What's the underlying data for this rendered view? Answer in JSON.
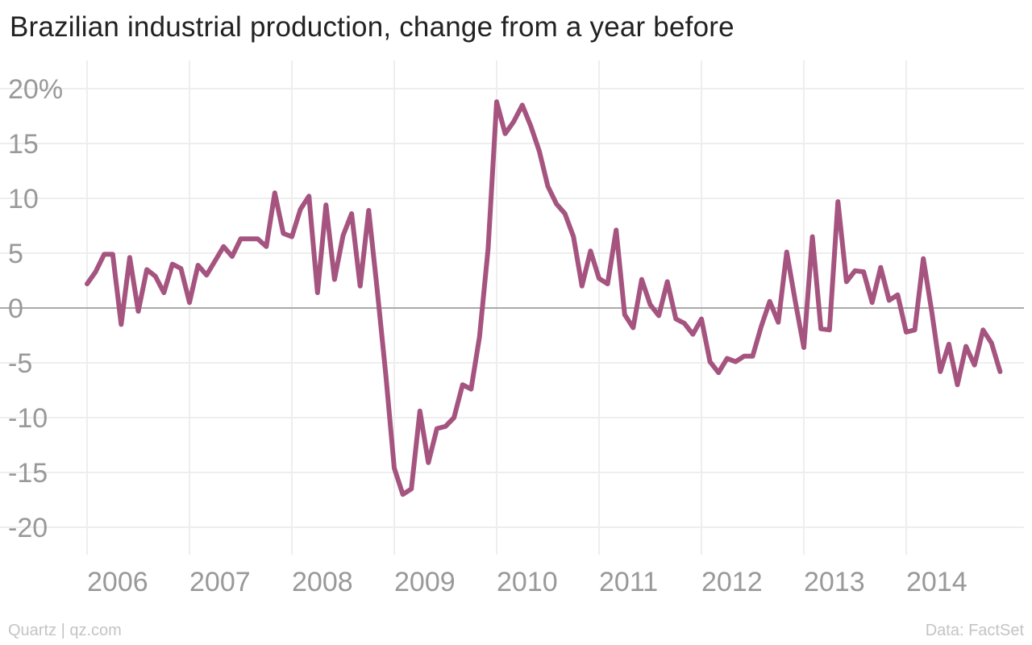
{
  "chart_data": {
    "type": "line",
    "title": "Brazilian industrial production, change from a year before",
    "xlabel": "",
    "ylabel": "",
    "y_unit": "%",
    "ylim": [
      -22,
      22
    ],
    "xlim": [
      "2006-01",
      "2014-12"
    ],
    "grid": true,
    "zero_line": true,
    "legend": "none",
    "y_ticks": [
      20,
      15,
      10,
      5,
      0,
      -5,
      -10,
      -15,
      -20
    ],
    "y_tick_labels": [
      "20%",
      "15",
      "10",
      "5",
      "0",
      "-5",
      "-10",
      "-15",
      "-20"
    ],
    "x_ticks": [
      "2006",
      "2007",
      "2008",
      "2009",
      "2010",
      "2011",
      "2012",
      "2013",
      "2014"
    ],
    "series": [
      {
        "color": "#a5547f",
        "points": [
          [
            "2006-01",
            2.2
          ],
          [
            "2006-02",
            3.3
          ],
          [
            "2006-03",
            4.9
          ],
          [
            "2006-04",
            4.9
          ],
          [
            "2006-05",
            -1.5
          ],
          [
            "2006-06",
            4.6
          ],
          [
            "2006-07",
            -0.3
          ],
          [
            "2006-08",
            3.5
          ],
          [
            "2006-09",
            2.9
          ],
          [
            "2006-10",
            1.4
          ],
          [
            "2006-11",
            4.0
          ],
          [
            "2006-12",
            3.6
          ],
          [
            "2007-01",
            0.5
          ],
          [
            "2007-02",
            3.9
          ],
          [
            "2007-03",
            3.0
          ],
          [
            "2007-04",
            4.3
          ],
          [
            "2007-05",
            5.6
          ],
          [
            "2007-06",
            4.7
          ],
          [
            "2007-07",
            6.3
          ],
          [
            "2007-08",
            6.3
          ],
          [
            "2007-09",
            6.3
          ],
          [
            "2007-10",
            5.6
          ],
          [
            "2007-11",
            10.5
          ],
          [
            "2007-12",
            6.8
          ],
          [
            "2008-01",
            6.5
          ],
          [
            "2008-02",
            9.0
          ],
          [
            "2008-03",
            10.2
          ],
          [
            "2008-04",
            1.4
          ],
          [
            "2008-05",
            9.4
          ],
          [
            "2008-06",
            2.6
          ],
          [
            "2008-07",
            6.6
          ],
          [
            "2008-08",
            8.6
          ],
          [
            "2008-09",
            2.0
          ],
          [
            "2008-10",
            8.9
          ],
          [
            "2008-11",
            1.7
          ],
          [
            "2008-12",
            -6.0
          ],
          [
            "2009-01",
            -14.6
          ],
          [
            "2009-02",
            -17.0
          ],
          [
            "2009-03",
            -16.5
          ],
          [
            "2009-04",
            -9.4
          ],
          [
            "2009-05",
            -14.1
          ],
          [
            "2009-06",
            -11.0
          ],
          [
            "2009-07",
            -10.8
          ],
          [
            "2009-08",
            -10.0
          ],
          [
            "2009-09",
            -7.0
          ],
          [
            "2009-10",
            -7.4
          ],
          [
            "2009-11",
            -2.6
          ],
          [
            "2009-12",
            5.4
          ],
          [
            "2010-01",
            18.8
          ],
          [
            "2010-02",
            15.9
          ],
          [
            "2010-03",
            17.0
          ],
          [
            "2010-04",
            18.5
          ],
          [
            "2010-05",
            16.6
          ],
          [
            "2010-06",
            14.3
          ],
          [
            "2010-07",
            11.1
          ],
          [
            "2010-08",
            9.5
          ],
          [
            "2010-09",
            8.6
          ],
          [
            "2010-10",
            6.5
          ],
          [
            "2010-11",
            2.0
          ],
          [
            "2010-12",
            5.2
          ],
          [
            "2011-01",
            2.7
          ],
          [
            "2011-02",
            2.2
          ],
          [
            "2011-03",
            7.1
          ],
          [
            "2011-04",
            -0.6
          ],
          [
            "2011-05",
            -1.8
          ],
          [
            "2011-06",
            2.6
          ],
          [
            "2011-07",
            0.3
          ],
          [
            "2011-08",
            -0.7
          ],
          [
            "2011-09",
            2.4
          ],
          [
            "2011-10",
            -1.0
          ],
          [
            "2011-11",
            -1.4
          ],
          [
            "2011-12",
            -2.4
          ],
          [
            "2012-01",
            -1.0
          ],
          [
            "2012-02",
            -4.9
          ],
          [
            "2012-03",
            -5.9
          ],
          [
            "2012-04",
            -4.6
          ],
          [
            "2012-05",
            -4.9
          ],
          [
            "2012-06",
            -4.4
          ],
          [
            "2012-07",
            -4.4
          ],
          [
            "2012-08",
            -1.7
          ],
          [
            "2012-09",
            0.6
          ],
          [
            "2012-10",
            -1.3
          ],
          [
            "2012-11",
            5.1
          ],
          [
            "2012-12",
            0.6
          ],
          [
            "2013-01",
            -3.6
          ],
          [
            "2013-02",
            6.5
          ],
          [
            "2013-03",
            -1.9
          ],
          [
            "2013-04",
            -2.0
          ],
          [
            "2013-05",
            9.7
          ],
          [
            "2013-06",
            2.4
          ],
          [
            "2013-07",
            3.4
          ],
          [
            "2013-08",
            3.3
          ],
          [
            "2013-09",
            0.5
          ],
          [
            "2013-10",
            3.7
          ],
          [
            "2013-11",
            0.7
          ],
          [
            "2013-12",
            1.2
          ],
          [
            "2014-01",
            -2.2
          ],
          [
            "2014-02",
            -2.0
          ],
          [
            "2014-03",
            4.5
          ],
          [
            "2014-04",
            -0.4
          ],
          [
            "2014-05",
            -5.8
          ],
          [
            "2014-06",
            -3.3
          ],
          [
            "2014-07",
            -7.0
          ],
          [
            "2014-08",
            -3.5
          ],
          [
            "2014-09",
            -5.2
          ],
          [
            "2014-10",
            -2.0
          ],
          [
            "2014-11",
            -3.2
          ],
          [
            "2014-12",
            -5.8
          ]
        ]
      }
    ]
  },
  "footer": {
    "source_left": "Quartz | qz.com",
    "source_right": "Data: FactSet"
  }
}
